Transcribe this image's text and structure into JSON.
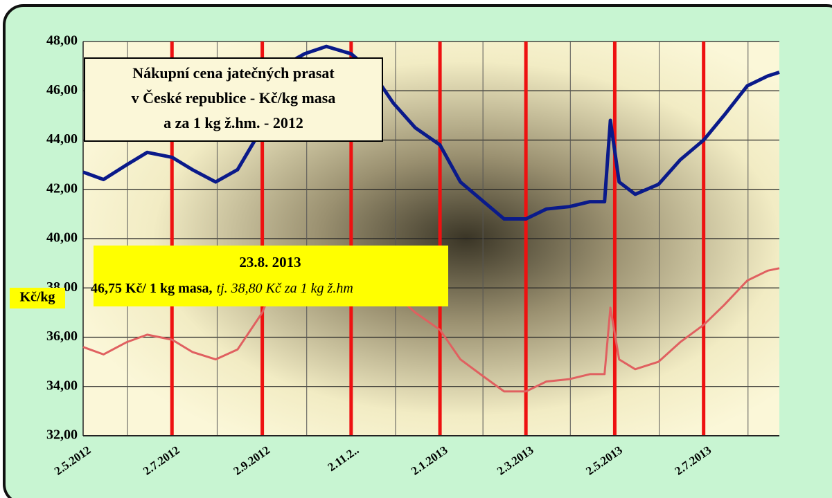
{
  "chart_data": {
    "type": "line",
    "title_lines": [
      "Nákupní cena jatečných prasat",
      "v České republice - Kč/kg masa",
      "a za 1 kg ž.hm. - 2012"
    ],
    "ylabel": "Kč/kg",
    "annotation": {
      "date": "23.8. 2013",
      "value_text": "46,75 Kč/ 1 kg masa,",
      "value_note": "tj. 38,80 Kč za 1 kg ž.hm"
    },
    "x": [
      "2.5.2012",
      "16.5.2012",
      "1.6.2012",
      "15.6.2012",
      "2.7.2012",
      "16.7.2012",
      "1.8.2012",
      "16.8.2012",
      "2.9.2012",
      "16.9.2012",
      "1.10.2012",
      "16.10.2012",
      "2.11.2012",
      "16.11.2012",
      "1.12.2012",
      "16.12.2012",
      "2.1.2013",
      "16.1.2013",
      "1.2.2013",
      "15.2.2013",
      "2.3.2013",
      "16.3.2013",
      "1.4.2013",
      "15.4.2013",
      "25.4.2013",
      "29.4.2013",
      "5.5.2013",
      "16.5.2013",
      "1.6.2013",
      "16.6.2013",
      "2.7.2013",
      "16.7.2013",
      "1.8.2013",
      "15.8.2013",
      "23.8.2013"
    ],
    "series": [
      {
        "color": "#0a1a8a",
        "values": [
          42.7,
          42.4,
          43.0,
          43.5,
          43.3,
          42.8,
          42.3,
          42.8,
          44.5,
          47.0,
          47.5,
          47.8,
          47.5,
          46.8,
          45.5,
          44.5,
          43.8,
          42.3,
          41.5,
          40.8,
          40.8,
          41.2,
          41.3,
          41.5,
          41.5,
          44.8,
          42.3,
          41.8,
          42.2,
          43.2,
          44.0,
          45.0,
          46.2,
          46.6,
          46.75
        ]
      },
      {
        "color": "#e06060",
        "values": [
          35.6,
          35.3,
          35.8,
          36.1,
          35.9,
          35.4,
          35.1,
          35.5,
          37.0,
          39.0,
          39.4,
          39.7,
          39.4,
          38.8,
          37.8,
          37.0,
          36.3,
          35.1,
          34.4,
          33.8,
          33.8,
          34.2,
          34.3,
          34.5,
          34.5,
          37.2,
          35.1,
          34.7,
          35.0,
          35.8,
          36.5,
          37.3,
          38.3,
          38.7,
          38.8
        ]
      }
    ],
    "xlim": [
      "2.5.2012",
      "23.8.2013"
    ],
    "xticks": [
      "2.5.2012",
      "2.7.2012",
      "2.9.2012",
      {
        "value": "2.11.2012",
        "label": "2.11.2.."
      },
      "2.1.2013",
      "2.3.2013",
      "2.5.2013",
      "2.7.2013"
    ],
    "ylim": [
      32,
      48
    ],
    "yticks": [
      {
        "value": 32,
        "label": "32,00"
      },
      {
        "value": 34,
        "label": "34,00"
      },
      {
        "value": 36,
        "label": "36,00"
      },
      {
        "value": 38,
        "label": "38,00"
      },
      {
        "value": 40,
        "label": "40,00"
      },
      {
        "value": 42,
        "label": "42,00"
      },
      {
        "value": 44,
        "label": "44,00"
      },
      {
        "value": 46,
        "label": "46,00"
      },
      {
        "value": 48,
        "label": "48,00"
      }
    ],
    "grid": true,
    "tick_line_color": "#ee1111"
  }
}
